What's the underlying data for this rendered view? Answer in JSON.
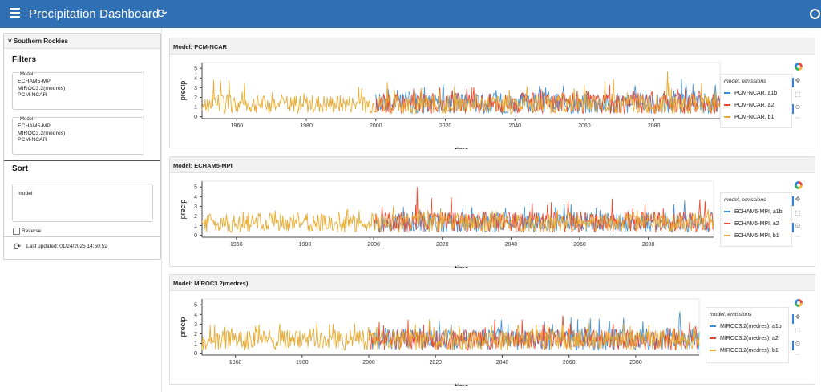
{
  "header": {
    "title": "Precipitation Dashboard",
    "menu_icon": "hamburger-icon",
    "reload_icon": "reload-icon",
    "status_icon": "busy-indicator-icon",
    "background_color": "#2f6fb4"
  },
  "sidebar": {
    "card_title": "Southern Rockies",
    "filters_title": "Filters",
    "model_filter_1": {
      "label": "Model",
      "options": [
        "ECHAM5-MPI",
        "MIROC3.2(medres)",
        "PCM-NCAR"
      ]
    },
    "model_filter_2": {
      "label": "Model",
      "options": [
        "ECHAM5-MPI",
        "MIROC3.2(medres)",
        "PCM-NCAR"
      ]
    },
    "sort_title": "Sort",
    "sort_value": "model",
    "reverse_label": "Reverse",
    "reverse_checked": false,
    "last_updated": "Last updated: 01/24/2025 14:50:52"
  },
  "colors": {
    "a1b": "#3b8fd6",
    "a2": "#e8462b",
    "b1": "#e6ac36"
  },
  "panels": [
    {
      "title": "Model: PCM-NCAR",
      "legend_title": "model, emissions",
      "legend": [
        "PCM-NCAR, a1b",
        "PCM-NCAR, a2",
        "PCM-NCAR, b1"
      ]
    },
    {
      "title": "Model: ECHAM5-MPI",
      "legend_title": "model, emissions",
      "legend": [
        "ECHAM5-MPI, a1b",
        "ECHAM5-MPI, a2",
        "ECHAM5-MPI, b1"
      ]
    },
    {
      "title": "Model: MIROC3.2(medres)",
      "legend_title": "model, emissions",
      "legend": [
        "MIROC3.2(medres), a1b",
        "MIROC3.2(medres), a2",
        "MIROC3.2(medres), b1"
      ]
    }
  ],
  "chart_data": [
    {
      "type": "line",
      "title": "Model: PCM-NCAR",
      "xlabel": "time",
      "ylabel": "precip",
      "xlim": [
        1950,
        2099
      ],
      "ylim": [
        -0.2,
        5.6
      ],
      "xticks": [
        1960,
        1980,
        2000,
        2020,
        2040,
        2060,
        2080
      ],
      "yticks": [
        0,
        1,
        2,
        3,
        4,
        5
      ],
      "series": [
        {
          "name": "PCM-NCAR, a1b",
          "x_range": [
            2000,
            2099
          ],
          "typical": [
            0.3,
            2.5
          ],
          "peak": 3.9
        },
        {
          "name": "PCM-NCAR, a2",
          "x_range": [
            2000,
            2099
          ],
          "typical": [
            0.3,
            2.5
          ],
          "peak": 3.3
        },
        {
          "name": "PCM-NCAR, b1",
          "x_range": [
            1950,
            2099
          ],
          "typical": [
            0.3,
            2.3
          ],
          "peak": 4.7
        }
      ]
    },
    {
      "type": "line",
      "title": "Model: ECHAM5-MPI",
      "xlabel": "time",
      "ylabel": "precip",
      "xlim": [
        1950,
        2099
      ],
      "ylim": [
        -0.2,
        5.6
      ],
      "xticks": [
        1960,
        1980,
        2000,
        2020,
        2040,
        2060,
        2080
      ],
      "yticks": [
        0,
        1,
        2,
        3,
        4,
        5
      ],
      "series": [
        {
          "name": "ECHAM5-MPI, a1b",
          "x_range": [
            2000,
            2099
          ],
          "typical": [
            0.3,
            2.4
          ],
          "peak": 3.6
        },
        {
          "name": "ECHAM5-MPI, a2",
          "x_range": [
            2000,
            2099
          ],
          "typical": [
            0.3,
            2.5
          ],
          "peak": 5.0
        },
        {
          "name": "ECHAM5-MPI, b1",
          "x_range": [
            1950,
            2099
          ],
          "typical": [
            0.3,
            2.3
          ],
          "peak": 3.0
        }
      ]
    },
    {
      "type": "line",
      "title": "Model: MIROC3.2(medres)",
      "xlabel": "time",
      "ylabel": "precip",
      "xlim": [
        1950,
        2099
      ],
      "ylim": [
        -0.2,
        5.6
      ],
      "xticks": [
        1960,
        1980,
        2000,
        2020,
        2040,
        2060,
        2080
      ],
      "yticks": [
        0,
        1,
        2,
        3,
        4,
        5
      ],
      "series": [
        {
          "name": "MIROC3.2(medres), a1b",
          "x_range": [
            2000,
            2099
          ],
          "typical": [
            0.3,
            2.6
          ],
          "peak": 4.3
        },
        {
          "name": "MIROC3.2(medres), a2",
          "x_range": [
            2000,
            2099
          ],
          "typical": [
            0.3,
            2.5
          ],
          "peak": 3.9
        },
        {
          "name": "MIROC3.2(medres), b1",
          "x_range": [
            1950,
            2099
          ],
          "typical": [
            0.3,
            2.4
          ],
          "peak": 3.5
        }
      ]
    }
  ]
}
